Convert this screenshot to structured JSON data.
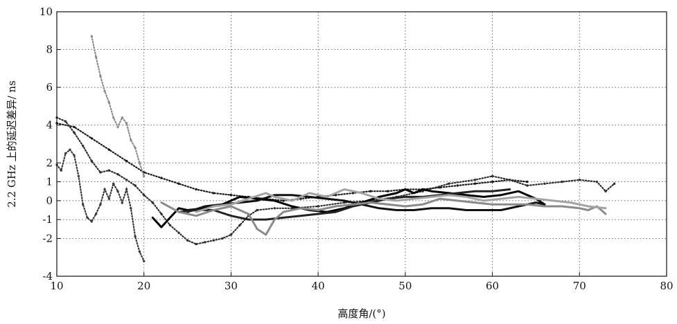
{
  "chart_data": {
    "type": "line",
    "xlabel": "高度角/(°)",
    "ylabel": "2.2 GHz 上的延迟差异/ ns",
    "xlim": [
      10,
      80
    ],
    "ylim": [
      -4,
      10
    ],
    "xticks": [
      10,
      20,
      30,
      40,
      50,
      60,
      70,
      80
    ],
    "yticks": [
      -4,
      -2,
      -1,
      0,
      1,
      2,
      4,
      6,
      8,
      10
    ],
    "grid": true,
    "legend": "none",
    "series": [
      {
        "color": "#1a1a1a",
        "style": "dots",
        "points": [
          [
            10,
            4.1
          ],
          [
            12,
            3.9
          ],
          [
            14,
            3.3
          ],
          [
            16,
            2.7
          ],
          [
            18,
            2.1
          ],
          [
            20,
            1.5
          ],
          [
            22,
            1.2
          ],
          [
            24,
            0.9
          ],
          [
            26,
            0.6
          ],
          [
            28,
            0.4
          ],
          [
            30,
            0.3
          ],
          [
            32,
            0.2
          ],
          [
            34,
            0.1
          ],
          [
            36,
            0.0
          ],
          [
            38,
            0.1
          ],
          [
            40,
            0.2
          ],
          [
            42,
            0.3
          ],
          [
            44,
            0.4
          ],
          [
            46,
            0.5
          ],
          [
            48,
            0.5
          ],
          [
            50,
            0.6
          ],
          [
            52,
            0.6
          ],
          [
            54,
            0.7
          ],
          [
            56,
            0.8
          ],
          [
            58,
            0.9
          ],
          [
            60,
            1.0
          ],
          [
            62,
            1.1
          ],
          [
            64,
            1.0
          ]
        ]
      },
      {
        "color": "#2e2e2e",
        "style": "dots",
        "points": [
          [
            10,
            4.4
          ],
          [
            11,
            4.2
          ],
          [
            12,
            3.6
          ],
          [
            13,
            2.9
          ],
          [
            14,
            2.1
          ],
          [
            15,
            1.5
          ],
          [
            16,
            1.6
          ],
          [
            17,
            1.4
          ],
          [
            18,
            1.1
          ],
          [
            19,
            0.8
          ],
          [
            20,
            0.3
          ],
          [
            21,
            -0.1
          ],
          [
            22,
            -0.7
          ],
          [
            23,
            -1.3
          ],
          [
            24,
            -1.7
          ],
          [
            25,
            -2.1
          ],
          [
            26,
            -2.3
          ],
          [
            27,
            -2.2
          ],
          [
            28,
            -2.1
          ],
          [
            29,
            -2.0
          ],
          [
            30,
            -1.8
          ],
          [
            31,
            -1.3
          ],
          [
            32,
            -0.8
          ],
          [
            33,
            -0.5
          ],
          [
            35,
            -0.4
          ],
          [
            37,
            -0.4
          ],
          [
            40,
            -0.3
          ],
          [
            43,
            -0.1
          ],
          [
            46,
            0.0
          ],
          [
            49,
            0.2
          ],
          [
            52,
            0.5
          ],
          [
            55,
            0.9
          ],
          [
            58,
            1.1
          ],
          [
            60,
            1.3
          ],
          [
            62,
            1.1
          ],
          [
            64,
            0.8
          ],
          [
            66,
            0.9
          ],
          [
            68,
            1.0
          ],
          [
            70,
            1.1
          ],
          [
            72,
            1.0
          ],
          [
            73,
            0.5
          ],
          [
            74,
            0.9
          ]
        ]
      },
      {
        "color": "#000000",
        "style": "line",
        "points": [
          [
            21,
            -0.9
          ],
          [
            22,
            -1.4
          ],
          [
            23,
            -0.9
          ],
          [
            24,
            -0.4
          ],
          [
            25,
            -0.5
          ],
          [
            27,
            -0.4
          ],
          [
            29,
            -0.2
          ],
          [
            31,
            0.2
          ],
          [
            33,
            0.1
          ],
          [
            35,
            0.0
          ],
          [
            37,
            -0.3
          ],
          [
            39,
            -0.5
          ],
          [
            41,
            -0.6
          ],
          [
            43,
            -0.4
          ],
          [
            45,
            -0.1
          ],
          [
            47,
            0.2
          ],
          [
            49,
            0.4
          ],
          [
            50,
            0.6
          ],
          [
            51,
            0.4
          ],
          [
            52,
            0.6
          ],
          [
            53,
            0.5
          ],
          [
            55,
            0.4
          ],
          [
            57,
            0.3
          ],
          [
            59,
            0.2
          ],
          [
            61,
            0.3
          ],
          [
            63,
            0.5
          ],
          [
            64,
            0.3
          ],
          [
            65,
            0.1
          ],
          [
            66,
            -0.2
          ]
        ]
      },
      {
        "color": "#111111",
        "style": "line",
        "points": [
          [
            25,
            -0.6
          ],
          [
            27,
            -0.3
          ],
          [
            29,
            -0.2
          ],
          [
            31,
            -0.1
          ],
          [
            33,
            0.0
          ],
          [
            35,
            0.3
          ],
          [
            37,
            0.3
          ],
          [
            39,
            0.2
          ],
          [
            41,
            0.1
          ],
          [
            43,
            0.0
          ],
          [
            45,
            -0.2
          ],
          [
            47,
            -0.4
          ],
          [
            49,
            -0.5
          ],
          [
            51,
            -0.5
          ],
          [
            53,
            -0.4
          ],
          [
            55,
            -0.4
          ],
          [
            57,
            -0.5
          ],
          [
            59,
            -0.5
          ],
          [
            61,
            -0.5
          ],
          [
            63,
            -0.3
          ],
          [
            65,
            -0.1
          ],
          [
            66,
            -0.2
          ]
        ]
      },
      {
        "color": "#222222",
        "style": "line",
        "points": [
          [
            24,
            -0.6
          ],
          [
            26,
            -0.5
          ],
          [
            28,
            -0.5
          ],
          [
            30,
            -0.8
          ],
          [
            32,
            -1.0
          ],
          [
            34,
            -1.0
          ],
          [
            36,
            -0.9
          ],
          [
            38,
            -0.8
          ],
          [
            40,
            -0.7
          ],
          [
            42,
            -0.6
          ],
          [
            44,
            -0.3
          ],
          [
            46,
            -0.1
          ],
          [
            48,
            0.1
          ],
          [
            50,
            0.2
          ],
          [
            52,
            0.2
          ],
          [
            54,
            0.3
          ],
          [
            56,
            0.4
          ],
          [
            58,
            0.5
          ],
          [
            60,
            0.5
          ],
          [
            62,
            0.6
          ]
        ]
      },
      {
        "color": "#8a8a8a",
        "style": "line",
        "points": [
          [
            22,
            -0.1
          ],
          [
            24,
            -0.6
          ],
          [
            26,
            -0.8
          ],
          [
            28,
            -0.5
          ],
          [
            30,
            -0.3
          ],
          [
            32,
            -0.7
          ],
          [
            33,
            -1.5
          ],
          [
            34,
            -1.8
          ],
          [
            35,
            -1.0
          ],
          [
            36,
            -0.6
          ],
          [
            38,
            -0.4
          ],
          [
            40,
            -0.5
          ],
          [
            42,
            -0.3
          ],
          [
            44,
            -0.2
          ],
          [
            46,
            -0.1
          ],
          [
            48,
            -0.2
          ],
          [
            50,
            -0.3
          ],
          [
            52,
            -0.2
          ],
          [
            54,
            0.1
          ],
          [
            56,
            0.0
          ],
          [
            58,
            -0.1
          ],
          [
            60,
            -0.2
          ],
          [
            62,
            -0.2
          ],
          [
            64,
            -0.2
          ],
          [
            66,
            -0.3
          ],
          [
            68,
            -0.3
          ],
          [
            70,
            -0.4
          ],
          [
            71,
            -0.5
          ],
          [
            72,
            -0.3
          ],
          [
            73,
            -0.7
          ]
        ]
      },
      {
        "color": "#a3a3a3",
        "style": "line",
        "points": [
          [
            26,
            -0.6
          ],
          [
            28,
            -0.3
          ],
          [
            30,
            -0.2
          ],
          [
            32,
            0.1
          ],
          [
            34,
            0.4
          ],
          [
            35,
            0.2
          ],
          [
            37,
            0.0
          ],
          [
            39,
            0.4
          ],
          [
            41,
            0.2
          ],
          [
            43,
            0.6
          ],
          [
            45,
            0.4
          ],
          [
            47,
            0.1
          ],
          [
            49,
            0.0
          ],
          [
            51,
            0.1
          ],
          [
            53,
            0.2
          ],
          [
            55,
            0.3
          ],
          [
            57,
            0.2
          ],
          [
            59,
            0.0
          ],
          [
            61,
            0.1
          ],
          [
            63,
            0.2
          ],
          [
            65,
            0.1
          ],
          [
            67,
            0.0
          ],
          [
            69,
            -0.1
          ],
          [
            71,
            -0.3
          ],
          [
            73,
            -0.4
          ]
        ]
      },
      {
        "color": "#8c8c8c",
        "style": "dots",
        "points": [
          [
            14,
            8.7
          ],
          [
            14.5,
            7.6
          ],
          [
            15,
            6.6
          ],
          [
            15.5,
            5.8
          ],
          [
            16,
            5.2
          ],
          [
            16.5,
            4.4
          ],
          [
            17,
            3.9
          ],
          [
            17.5,
            4.4
          ],
          [
            18,
            4.1
          ],
          [
            18.5,
            3.2
          ],
          [
            19,
            2.8
          ],
          [
            19.5,
            2.0
          ],
          [
            20,
            1.3
          ]
        ]
      },
      {
        "color": "#3a3a3a",
        "style": "dots",
        "points": [
          [
            10,
            1.9
          ],
          [
            10.5,
            1.6
          ],
          [
            11,
            2.5
          ],
          [
            11.5,
            2.7
          ],
          [
            12,
            2.4
          ],
          [
            12.5,
            1.3
          ],
          [
            13,
            -0.2
          ],
          [
            13.5,
            -0.9
          ],
          [
            14,
            -1.1
          ],
          [
            14.5,
            -0.7
          ],
          [
            15,
            -0.2
          ],
          [
            15.5,
            0.6
          ],
          [
            16,
            0.1
          ],
          [
            16.5,
            0.9
          ],
          [
            17,
            0.5
          ],
          [
            17.5,
            -0.1
          ],
          [
            18,
            0.6
          ],
          [
            18.5,
            -0.4
          ],
          [
            19,
            -1.9
          ],
          [
            19.5,
            -2.7
          ],
          [
            20,
            -3.2
          ]
        ]
      }
    ]
  }
}
